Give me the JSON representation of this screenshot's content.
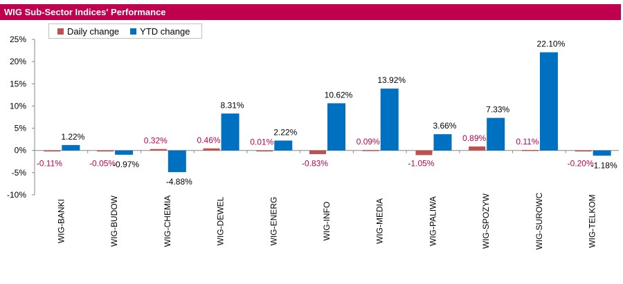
{
  "title": "WIG Sub-Sector Indices' Performance",
  "colors": {
    "title_bg": "#c0004f",
    "daily": "#c0504d",
    "ytd": "#0070c0",
    "daily_label": "#c0004f"
  },
  "chart_data": {
    "type": "bar",
    "categories": [
      "WIG-BANKI",
      "WIG-BUDOW",
      "WIG-CHEMIA",
      "WIG-DEWEL",
      "WIG-ENERG",
      "WIG-INFO",
      "WIG-MEDIA",
      "WIG-PALIWA",
      "WIG-SPOZYW",
      "WIG-SUROWC",
      "WIG-TELKOM"
    ],
    "series": [
      {
        "name": "Daily change",
        "values": [
          -0.11,
          -0.05,
          0.32,
          0.46,
          0.01,
          -0.83,
          0.09,
          -1.05,
          0.89,
          0.11,
          -0.2
        ],
        "labels": [
          "-0.11%",
          "-0.05%",
          "0.32%",
          "0.46%",
          "0.01%",
          "-0.83%",
          "0.09%",
          "-1.05%",
          "0.89%",
          "0.11%",
          "-0.20%"
        ]
      },
      {
        "name": "YTD change",
        "values": [
          1.22,
          -0.97,
          -4.88,
          8.31,
          2.22,
          10.62,
          13.92,
          3.66,
          7.33,
          22.1,
          -1.18
        ],
        "labels": [
          "1.22%",
          "-0.97%",
          "-4.88%",
          "8.31%",
          "2.22%",
          "10.62%",
          "13.92%",
          "3.66%",
          "7.33%",
          "22.10%",
          "-1.18%"
        ]
      }
    ],
    "ylim": [
      -10,
      25
    ],
    "yticks": [
      -10,
      -5,
      0,
      5,
      10,
      15,
      20,
      25
    ],
    "ytick_labels": [
      "-10%",
      "-5%",
      "0%",
      "5%",
      "10%",
      "15%",
      "20%",
      "25%"
    ],
    "legend_position": "top-left",
    "grid": false
  }
}
